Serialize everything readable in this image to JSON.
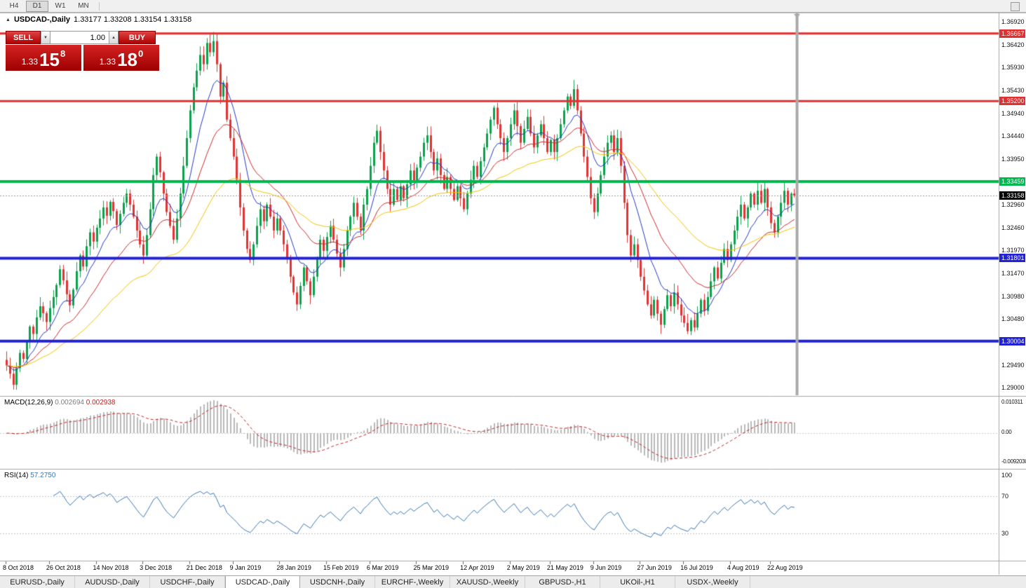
{
  "icons": {
    "collapse": "▲",
    "step_down": "▼",
    "step_up": "▲"
  },
  "toolbar": {
    "timeframes": [
      {
        "label": "H4",
        "active": false
      },
      {
        "label": "D1",
        "active": true
      },
      {
        "label": "W1",
        "active": false
      },
      {
        "label": "MN",
        "active": false
      }
    ]
  },
  "chart_header": {
    "symbol_label": "USDCAD-,Daily",
    "ohlc": "1.33177 1.33208 1.33154 1.33158"
  },
  "one_click": {
    "sell_label": "SELL",
    "buy_label": "BUY",
    "volume": "1.00",
    "sell_price_big": "1.33",
    "sell_price_mid": "15",
    "sell_price_sup": "8",
    "buy_price_big": "1.33",
    "buy_price_mid": "18",
    "buy_price_sup": "0"
  },
  "indicators": {
    "macd": {
      "title": "MACD(12,26,9)",
      "value_main": "0.002694",
      "value_signal": "0.002938",
      "axis_labels": [
        "0.010311",
        "0.00",
        "-0.0092030"
      ]
    },
    "rsi": {
      "title": "RSI(14)",
      "value": "57.2750",
      "axis_labels": [
        "100",
        "70",
        "30"
      ]
    }
  },
  "tabs": [
    {
      "label": "EURUSD-,Daily",
      "active": false
    },
    {
      "label": "AUDUSD-,Daily",
      "active": false
    },
    {
      "label": "USDCHF-,Daily",
      "active": false
    },
    {
      "label": "USDCAD-,Daily",
      "active": true
    },
    {
      "label": "USDCNH-,Daily",
      "active": false
    },
    {
      "label": "EURCHF-,Weekly",
      "active": false
    },
    {
      "label": "XAUUSD-,Weekly",
      "active": false
    },
    {
      "label": "GBPUSD-,H1",
      "active": false
    },
    {
      "label": "UKOil-,H1",
      "active": false
    },
    {
      "label": "USDX-,Weekly",
      "active": false
    }
  ],
  "chart_data": {
    "type": "candlestick",
    "symbol": "USDCAD",
    "period": "Daily",
    "current_ohlc": {
      "open": 1.33177,
      "high": 1.33208,
      "low": 1.33154,
      "close": 1.33158
    },
    "y_axis_ticks": [
      "1.36920",
      "1.36420",
      "1.35930",
      "1.35430",
      "1.34940",
      "1.34440",
      "1.33950",
      "1.32960",
      "1.32460",
      "1.31970",
      "1.31470",
      "1.30980",
      "1.30480",
      "1.29490",
      "1.29000"
    ],
    "horizontal_levels": [
      {
        "price": 1.36667,
        "label": "1.36667",
        "color": "#e03030",
        "width": 3
      },
      {
        "price": 1.352,
        "label": "1.35200",
        "color": "#e03030",
        "width": 3
      },
      {
        "price": 1.33459,
        "label": "1.33459",
        "color": "#00b94e",
        "width": 4
      },
      {
        "price": 1.31801,
        "label": "1.31801",
        "color": "#2121d8",
        "width": 4
      },
      {
        "price": 1.30004,
        "label": "1.30004",
        "color": "#2121d8",
        "width": 4
      }
    ],
    "current_price": {
      "value": 1.33158,
      "label": "1.33158",
      "tag_color": "#000000"
    },
    "x_labels": [
      "8 Oct 2018",
      "26 Oct 2018",
      "14 Nov 2018",
      "3 Dec 2018",
      "21 Dec 2018",
      "9 Jan 2019",
      "28 Jan 2019",
      "15 Feb 2019",
      "6 Mar 2019",
      "25 Mar 2019",
      "12 Apr 2019",
      "2 May 2019",
      "21 May 2019",
      "9 Jun 2019",
      "27 Jun 2019",
      "16 Jul 2019",
      "4 Aug 2019",
      "22 Aug 2019"
    ],
    "x_label_indices": [
      0,
      13,
      27,
      41,
      55,
      68,
      82,
      96,
      109,
      123,
      137,
      151,
      163,
      176,
      190,
      203,
      217,
      229
    ],
    "first_open": 1.296,
    "closes": [
      1.2948,
      1.293,
      1.2906,
      1.2942,
      1.2975,
      1.2962,
      1.3,
      1.3032,
      1.3016,
      1.3052,
      1.3076,
      1.3061,
      1.3042,
      1.3072,
      1.3096,
      1.3122,
      1.3156,
      1.3132,
      1.3102,
      1.3078,
      1.3112,
      1.3152,
      1.3186,
      1.3162,
      1.3206,
      1.3236,
      1.3216,
      1.3246,
      1.3266,
      1.329,
      1.3272,
      1.3302,
      1.3282,
      1.3252,
      1.3276,
      1.33,
      1.332,
      1.3296,
      1.327,
      1.324,
      1.321,
      1.3186,
      1.323,
      1.3286,
      1.336,
      1.34,
      1.3366,
      1.332,
      1.328,
      1.325,
      1.322,
      1.3266,
      1.332,
      1.338,
      1.344,
      1.35,
      1.355,
      1.3586,
      1.362,
      1.36,
      1.3646,
      1.3626,
      1.365,
      1.36,
      1.353,
      1.356,
      1.348,
      1.344,
      1.34,
      1.335,
      1.329,
      1.324,
      1.32,
      1.3176,
      1.321,
      1.325,
      1.3286,
      1.326,
      1.3296,
      1.327,
      1.324,
      1.3266,
      1.324,
      1.321,
      1.318,
      1.314,
      1.3106,
      1.308,
      1.312,
      1.316,
      1.313,
      1.31,
      1.314,
      1.318,
      1.322,
      1.3196,
      1.3226,
      1.325,
      1.322,
      1.319,
      1.316,
      1.32,
      1.324,
      1.327,
      1.33,
      1.327,
      1.324,
      1.3296,
      1.333,
      1.338,
      1.343,
      1.3456,
      1.341,
      1.337,
      1.333,
      1.3296,
      1.333,
      1.3306,
      1.3336,
      1.331,
      1.334,
      1.337,
      1.3346,
      1.3376,
      1.34,
      1.343,
      1.3446,
      1.341,
      1.337,
      1.3396,
      1.336,
      1.333,
      1.3356,
      1.333,
      1.3306,
      1.3336,
      1.331,
      1.3286,
      1.332,
      1.335,
      1.338,
      1.3356,
      1.339,
      1.342,
      1.345,
      1.348,
      1.3506,
      1.347,
      1.344,
      1.341,
      1.344,
      1.347,
      1.35,
      1.3466,
      1.343,
      1.346,
      1.3486,
      1.345,
      1.342,
      1.3446,
      1.347,
      1.344,
      1.341,
      1.3436,
      1.341,
      1.344,
      1.347,
      1.35,
      1.353,
      1.351,
      1.3546,
      1.35,
      1.345,
      1.34,
      1.3356,
      1.331,
      1.328,
      1.332,
      1.336,
      1.34,
      1.343,
      1.3446,
      1.341,
      1.344,
      1.338,
      1.33,
      1.323,
      1.3186,
      1.321,
      1.3176,
      1.314,
      1.311,
      1.308,
      1.3056,
      1.309,
      1.306,
      1.3036,
      1.307,
      1.31,
      1.3076,
      1.3106,
      1.308,
      1.3056,
      1.304,
      1.3022,
      1.3046,
      1.303,
      1.306,
      1.309,
      1.3066,
      1.3096,
      1.313,
      1.316,
      1.3136,
      1.317,
      1.32,
      1.3176,
      1.321,
      1.324,
      1.327,
      1.3296,
      1.3266,
      1.329,
      1.332,
      1.3296,
      1.3326,
      1.33,
      1.333,
      1.329,
      1.3256,
      1.3236,
      1.327,
      1.33,
      1.3326,
      1.3296,
      1.332,
      1.33158
    ],
    "moving_averages": [
      {
        "type": "ema",
        "period": 10,
        "color": "#2438c8"
      },
      {
        "type": "ema",
        "period": 24,
        "color": "#d02828"
      },
      {
        "type": "ema",
        "period": 52,
        "color": "#f2c500"
      }
    ],
    "macd_settings": {
      "fast": 12,
      "slow": 26,
      "signal": 9,
      "histogram_color": "#b9b9b9",
      "signal_color": "#c32222"
    },
    "rsi_settings": {
      "period": 14,
      "color": "#3a77b5",
      "levels": [
        70,
        30
      ]
    },
    "candle_up_color": "#0ca04c",
    "candle_down_color": "#e03434"
  }
}
